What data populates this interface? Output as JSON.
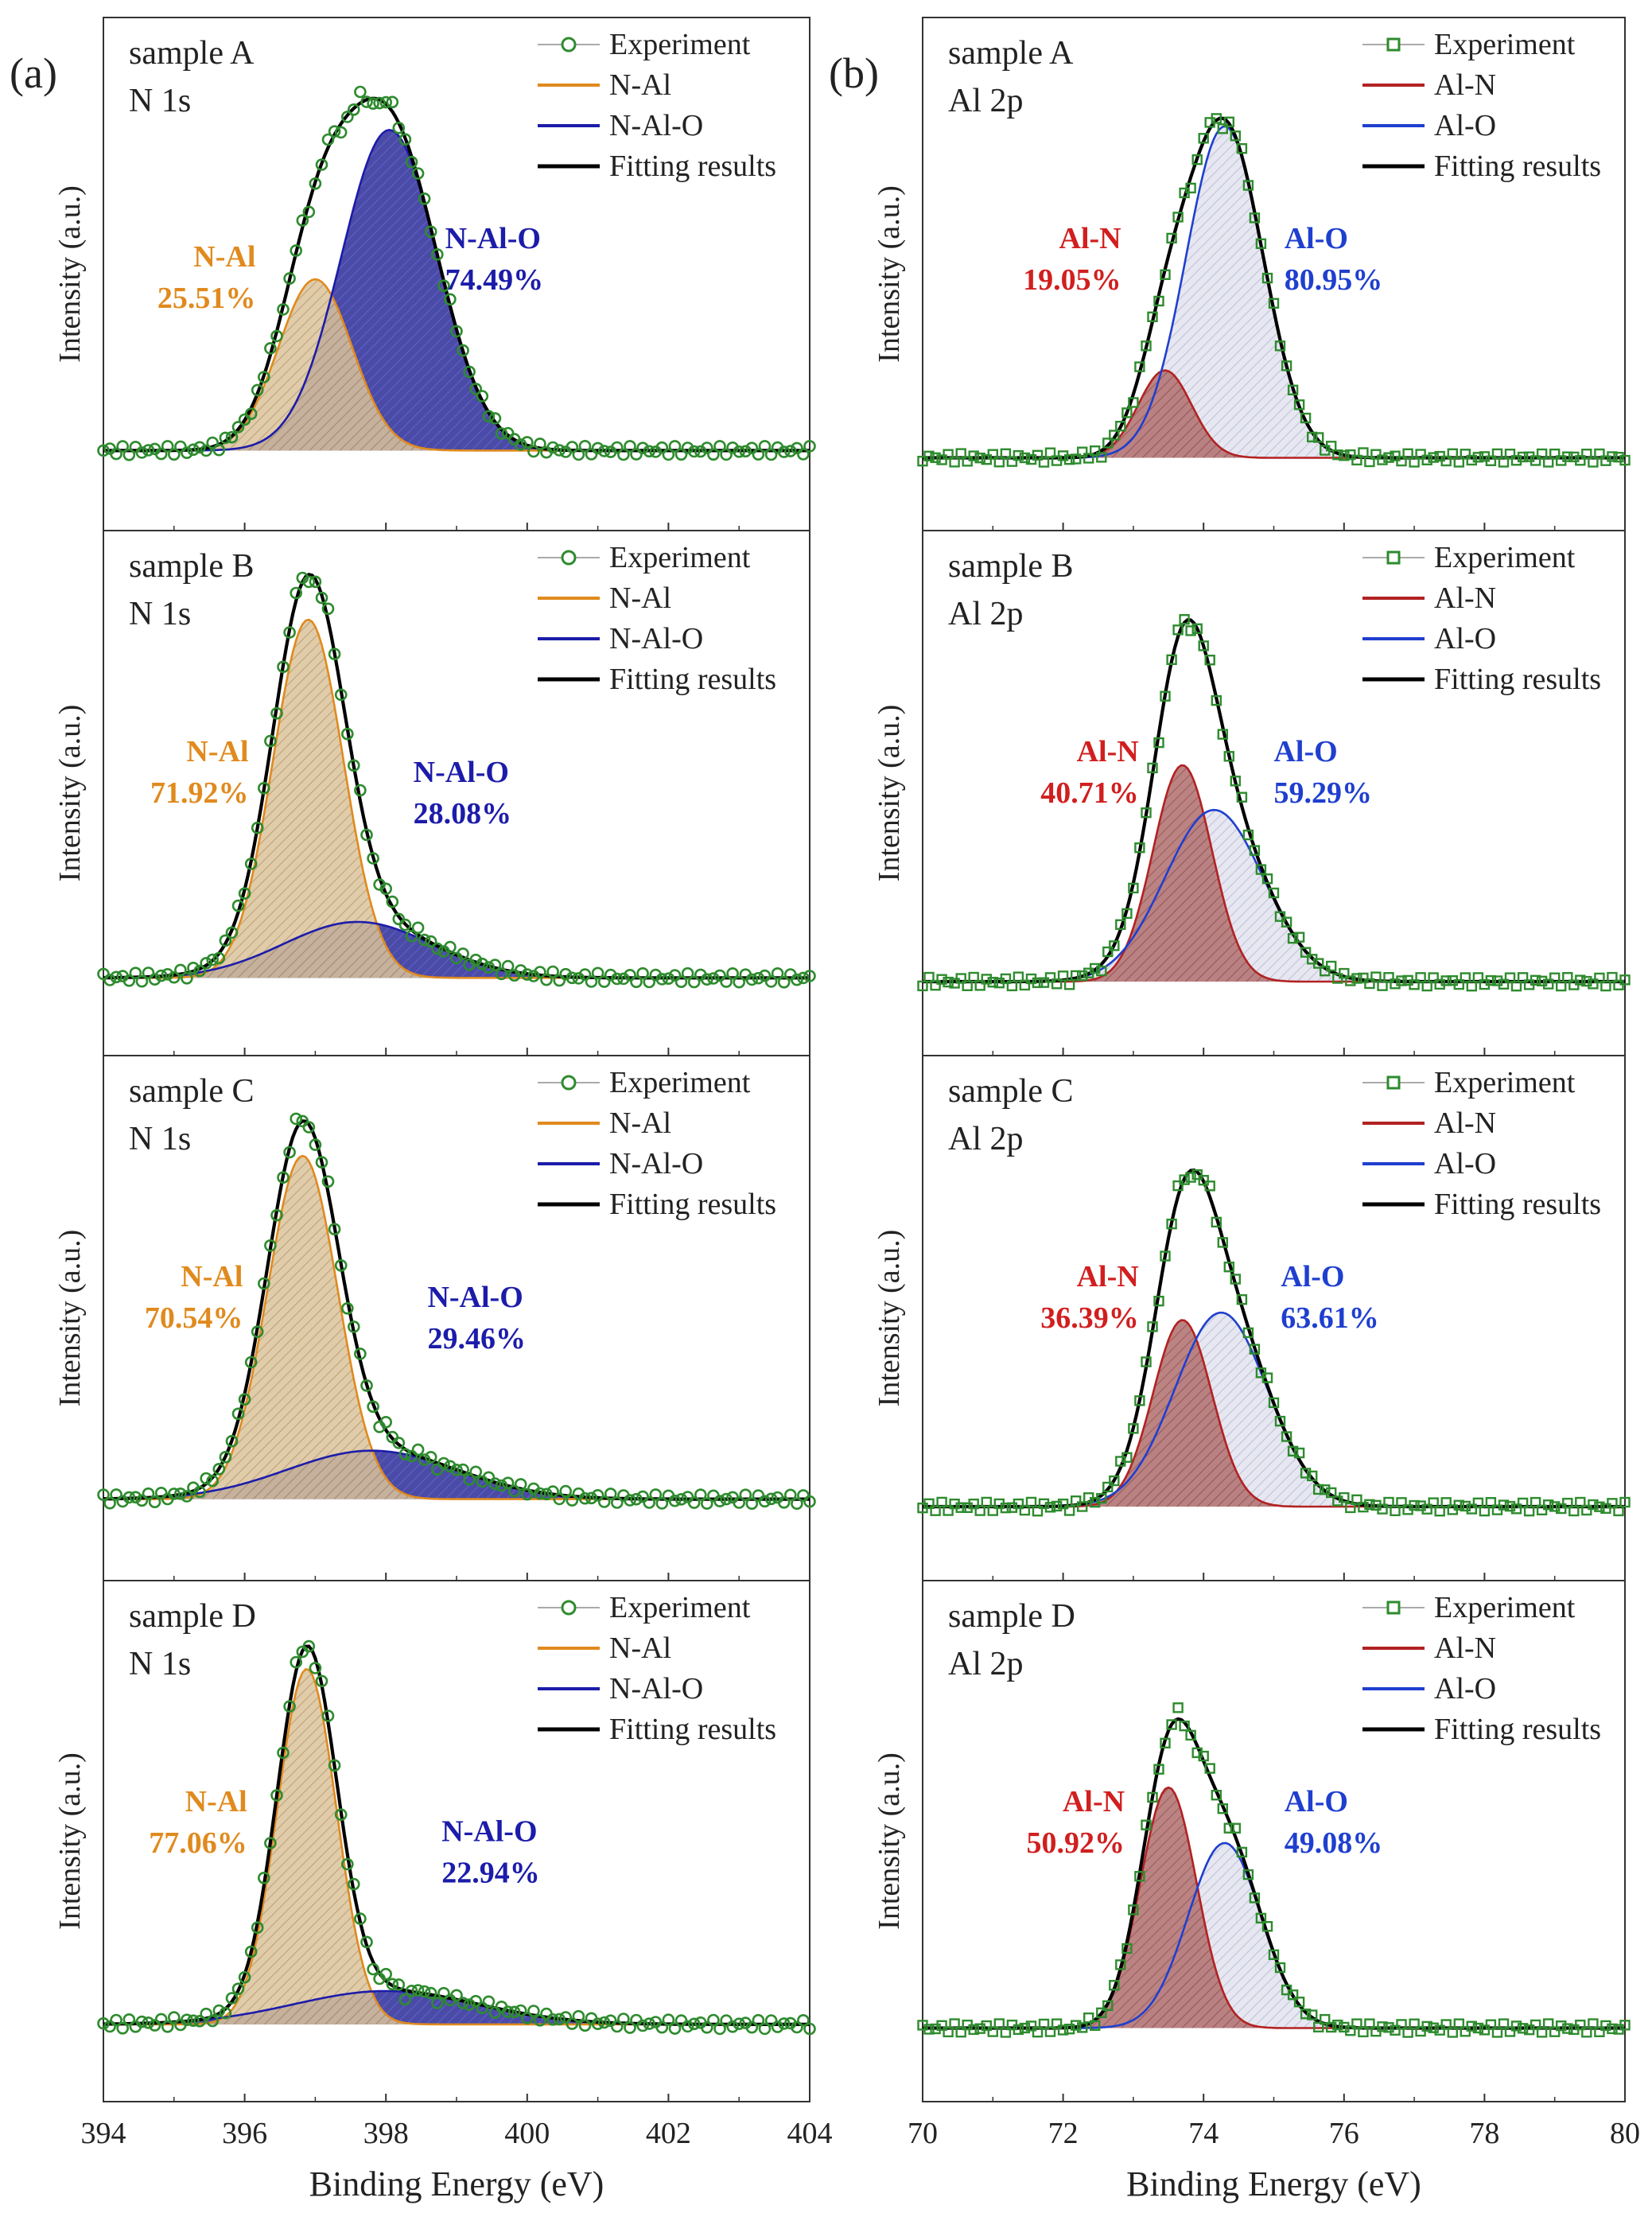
{
  "figure": {
    "x_label": "Binding Energy (eV)",
    "y_label": "Intensity (a.u.)",
    "colors": {
      "experiment": "#2e8b2e",
      "fit": "#000000",
      "n_al": "#e08a1e",
      "n_al_fill": "#dcc39a",
      "n_al_o": "#1c1caa",
      "n_al_o_fill": "#2a2a98",
      "al_n": "#b22222",
      "al_n_fill": "#b57676",
      "al_o": "#1f3fcf",
      "al_o_fill": "#e2e3ee",
      "label_n_al": "#e08a1e",
      "label_n_al_o": "#1c1caa",
      "label_al_n": "#d11f1f",
      "label_al_o": "#1f3fcf"
    }
  },
  "chart_data": [
    {
      "type": "line",
      "panel_label": "(a)",
      "column": 0,
      "row": 0,
      "sample": "sample A",
      "core_level": "N 1s",
      "xlabel": "",
      "ylabel": "Intensity (a.u.)",
      "xlim": [
        394,
        404
      ],
      "ylim": [
        0,
        1.15
      ],
      "baseline": 0.06,
      "x_tick_labels": [],
      "legend": [
        "Experiment",
        "N-Al",
        "N-Al-O",
        "Fitting results"
      ],
      "series": [
        {
          "name": "N-Al",
          "component": "A",
          "center": 397.0,
          "height": 0.47,
          "sigma": 0.52
        },
        {
          "name": "N-Al-O",
          "component": "B",
          "center": 398.05,
          "height": 0.88,
          "sigma": 0.68
        }
      ],
      "annotations": [
        {
          "name": "N-Al",
          "percent": "25.51%",
          "component": "A"
        },
        {
          "name": "N-Al-O",
          "percent": "74.49%",
          "component": "B"
        }
      ]
    },
    {
      "type": "line",
      "column": 0,
      "row": 1,
      "sample": "sample B",
      "core_level": "N 1s",
      "xlabel": "",
      "ylabel": "Intensity (a.u.)",
      "xlim": [
        394,
        404
      ],
      "ylim": [
        0,
        1.15
      ],
      "baseline": 0.05,
      "x_tick_labels": [],
      "legend": [
        "Experiment",
        "N-Al",
        "N-Al-O",
        "Fitting results"
      ],
      "series": [
        {
          "name": "N-Al",
          "component": "A",
          "center": 396.9,
          "height": 0.96,
          "sigma": 0.5
        },
        {
          "name": "N-Al-O",
          "component": "B",
          "center": 397.6,
          "height": 0.15,
          "sigma": 1.05
        }
      ],
      "annotations": [
        {
          "name": "N-Al",
          "percent": "71.92%",
          "component": "A"
        },
        {
          "name": "N-Al-O",
          "percent": "28.08%",
          "component": "B"
        }
      ]
    },
    {
      "type": "line",
      "column": 0,
      "row": 2,
      "sample": "sample C",
      "core_level": "N 1s",
      "xlabel": "",
      "ylabel": "Intensity (a.u.)",
      "xlim": [
        394,
        404
      ],
      "ylim": [
        0,
        1.15
      ],
      "baseline": 0.06,
      "x_tick_labels": [],
      "legend": [
        "Experiment",
        "N-Al",
        "N-Al-O",
        "Fitting results"
      ],
      "series": [
        {
          "name": "N-Al",
          "component": "A",
          "center": 396.82,
          "height": 0.92,
          "sigma": 0.5
        },
        {
          "name": "N-Al-O",
          "component": "B",
          "center": 397.8,
          "height": 0.13,
          "sigma": 1.2
        }
      ],
      "annotations": [
        {
          "name": "N-Al",
          "percent": "70.54%",
          "component": "A"
        },
        {
          "name": "N-Al-O",
          "percent": "29.46%",
          "component": "B"
        }
      ]
    },
    {
      "type": "line",
      "column": 0,
      "row": 3,
      "sample": "sample D",
      "core_level": "N 1s",
      "xlabel": "Binding Energy (eV)",
      "ylabel": "Intensity (a.u.)",
      "xlim": [
        394,
        404
      ],
      "ylim": [
        0,
        1.15
      ],
      "baseline": 0.05,
      "x_tick_labels": [
        "394",
        "396",
        "398",
        "400",
        "402",
        "404"
      ],
      "legend": [
        "Experiment",
        "N-Al",
        "N-Al-O",
        "Fitting results"
      ],
      "series": [
        {
          "name": "N-Al",
          "component": "A",
          "center": 396.88,
          "height": 0.96,
          "sigma": 0.42
        },
        {
          "name": "N-Al-O",
          "component": "B",
          "center": 398.0,
          "height": 0.09,
          "sigma": 1.3
        }
      ],
      "annotations": [
        {
          "name": "N-Al",
          "percent": "77.06%",
          "component": "A"
        },
        {
          "name": "N-Al-O",
          "percent": "22.94%",
          "component": "B"
        }
      ]
    },
    {
      "type": "line",
      "panel_label": "(b)",
      "column": 1,
      "row": 0,
      "sample": "sample A",
      "core_level": "Al 2p",
      "xlabel": "",
      "ylabel": "Intensity (a.u.)",
      "xlim": [
        70,
        80
      ],
      "ylim": [
        0,
        1.15
      ],
      "baseline": 0.04,
      "x_tick_labels": [],
      "legend": [
        "Experiment",
        "Al-N",
        "Al-O",
        "Fitting results"
      ],
      "series": [
        {
          "name": "Al-N",
          "component": "A",
          "center": 73.45,
          "height": 0.24,
          "sigma": 0.38
        },
        {
          "name": "Al-O",
          "component": "B",
          "center": 74.3,
          "height": 0.91,
          "sigma": 0.55
        }
      ],
      "annotations": [
        {
          "name": "Al-N",
          "percent": "19.05%",
          "component": "A"
        },
        {
          "name": "Al-O",
          "percent": "80.95%",
          "component": "B"
        }
      ]
    },
    {
      "type": "line",
      "column": 1,
      "row": 1,
      "sample": "sample B",
      "core_level": "Al 2p",
      "xlabel": "",
      "ylabel": "Intensity (a.u.)",
      "xlim": [
        70,
        80
      ],
      "ylim": [
        0,
        1.15
      ],
      "baseline": 0.04,
      "x_tick_labels": [],
      "legend": [
        "Experiment",
        "Al-N",
        "Al-O",
        "Fitting results"
      ],
      "series": [
        {
          "name": "Al-N",
          "component": "A",
          "center": 73.7,
          "height": 0.58,
          "sigma": 0.42
        },
        {
          "name": "Al-O",
          "component": "B",
          "center": 74.15,
          "height": 0.46,
          "sigma": 0.7
        }
      ],
      "annotations": [
        {
          "name": "Al-N",
          "percent": "40.71%",
          "component": "A"
        },
        {
          "name": "Al-O",
          "percent": "59.29%",
          "component": "B"
        }
      ]
    },
    {
      "type": "line",
      "column": 1,
      "row": 2,
      "sample": "sample C",
      "core_level": "Al 2p",
      "xlabel": "",
      "ylabel": "Intensity (a.u.)",
      "xlim": [
        70,
        80
      ],
      "ylim": [
        0,
        1.15
      ],
      "baseline": 0.04,
      "x_tick_labels": [],
      "legend": [
        "Experiment",
        "Al-N",
        "Al-O",
        "Fitting results"
      ],
      "series": [
        {
          "name": "Al-N",
          "component": "A",
          "center": 73.7,
          "height": 0.5,
          "sigma": 0.42
        },
        {
          "name": "Al-O",
          "component": "B",
          "center": 74.25,
          "height": 0.52,
          "sigma": 0.66
        }
      ],
      "annotations": [
        {
          "name": "Al-N",
          "percent": "36.39%",
          "component": "A"
        },
        {
          "name": "Al-O",
          "percent": "63.61%",
          "component": "B"
        }
      ]
    },
    {
      "type": "line",
      "column": 1,
      "row": 3,
      "sample": "sample D",
      "core_level": "Al 2p",
      "xlabel": "Binding Energy (eV)",
      "ylabel": "Intensity (a.u.)",
      "xlim": [
        70,
        80
      ],
      "ylim": [
        0,
        1.15
      ],
      "baseline": 0.04,
      "x_tick_labels": [
        "70",
        "72",
        "74",
        "76",
        "78",
        "80"
      ],
      "legend": [
        "Experiment",
        "Al-N",
        "Al-O",
        "Fitting results"
      ],
      "series": [
        {
          "name": "Al-N",
          "component": "A",
          "center": 73.5,
          "height": 0.65,
          "sigma": 0.4
        },
        {
          "name": "Al-O",
          "component": "B",
          "center": 74.3,
          "height": 0.5,
          "sigma": 0.52
        }
      ],
      "annotations": [
        {
          "name": "Al-N",
          "percent": "50.92%",
          "component": "A"
        },
        {
          "name": "Al-O",
          "percent": "49.08%",
          "component": "B"
        }
      ]
    }
  ]
}
